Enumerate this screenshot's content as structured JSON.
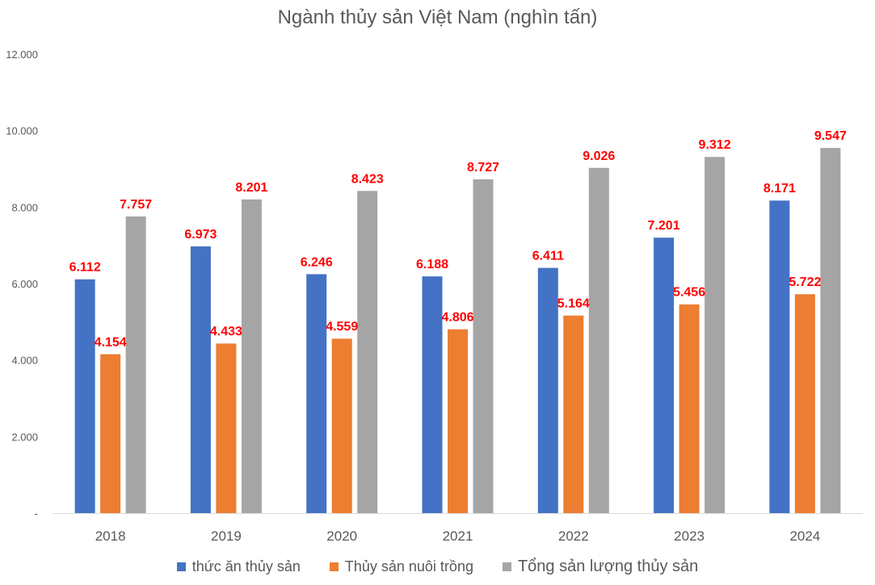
{
  "chart_data": {
    "type": "bar",
    "title": "Ngành thủy sản Việt Nam (nghìn tấn)",
    "categories": [
      "2018",
      "2019",
      "2020",
      "2021",
      "2022",
      "2023",
      "2024"
    ],
    "series": [
      {
        "name": "thức ăn thủy sản",
        "color": "#4472c4",
        "values": [
          6112,
          6973,
          6246,
          6188,
          6411,
          7201,
          8171
        ],
        "labels": [
          "6.112",
          "6.973",
          "6.246",
          "6.188",
          "6.411",
          "7.201",
          "8.171"
        ]
      },
      {
        "name": "Thủy sản nuôi trồng",
        "color": "#ed7d31",
        "values": [
          4154,
          4433,
          4559,
          4806,
          5164,
          5456,
          5722
        ],
        "labels": [
          "4.154",
          "4.433",
          "4.559",
          "4.806",
          "5.164",
          "5.456",
          "5.722"
        ]
      },
      {
        "name": "Tổng sản lượng thủy sản",
        "color": "#a5a5a5",
        "values": [
          7757,
          8201,
          8423,
          8727,
          9026,
          9312,
          9547
        ],
        "labels": [
          "7.757",
          "8.201",
          "8.423",
          "8.727",
          "9.026",
          "9.312",
          "9.547"
        ]
      }
    ],
    "ylim": [
      0,
      12000
    ],
    "yticks": [
      0,
      2000,
      4000,
      6000,
      8000,
      10000,
      12000
    ],
    "ytick_labels": [
      "-",
      "2.000",
      "4.000",
      "6.000",
      "8.000",
      "10.000",
      "12.000"
    ],
    "grid": false,
    "data_label_color": "#ff0000",
    "legend_position": "bottom"
  }
}
